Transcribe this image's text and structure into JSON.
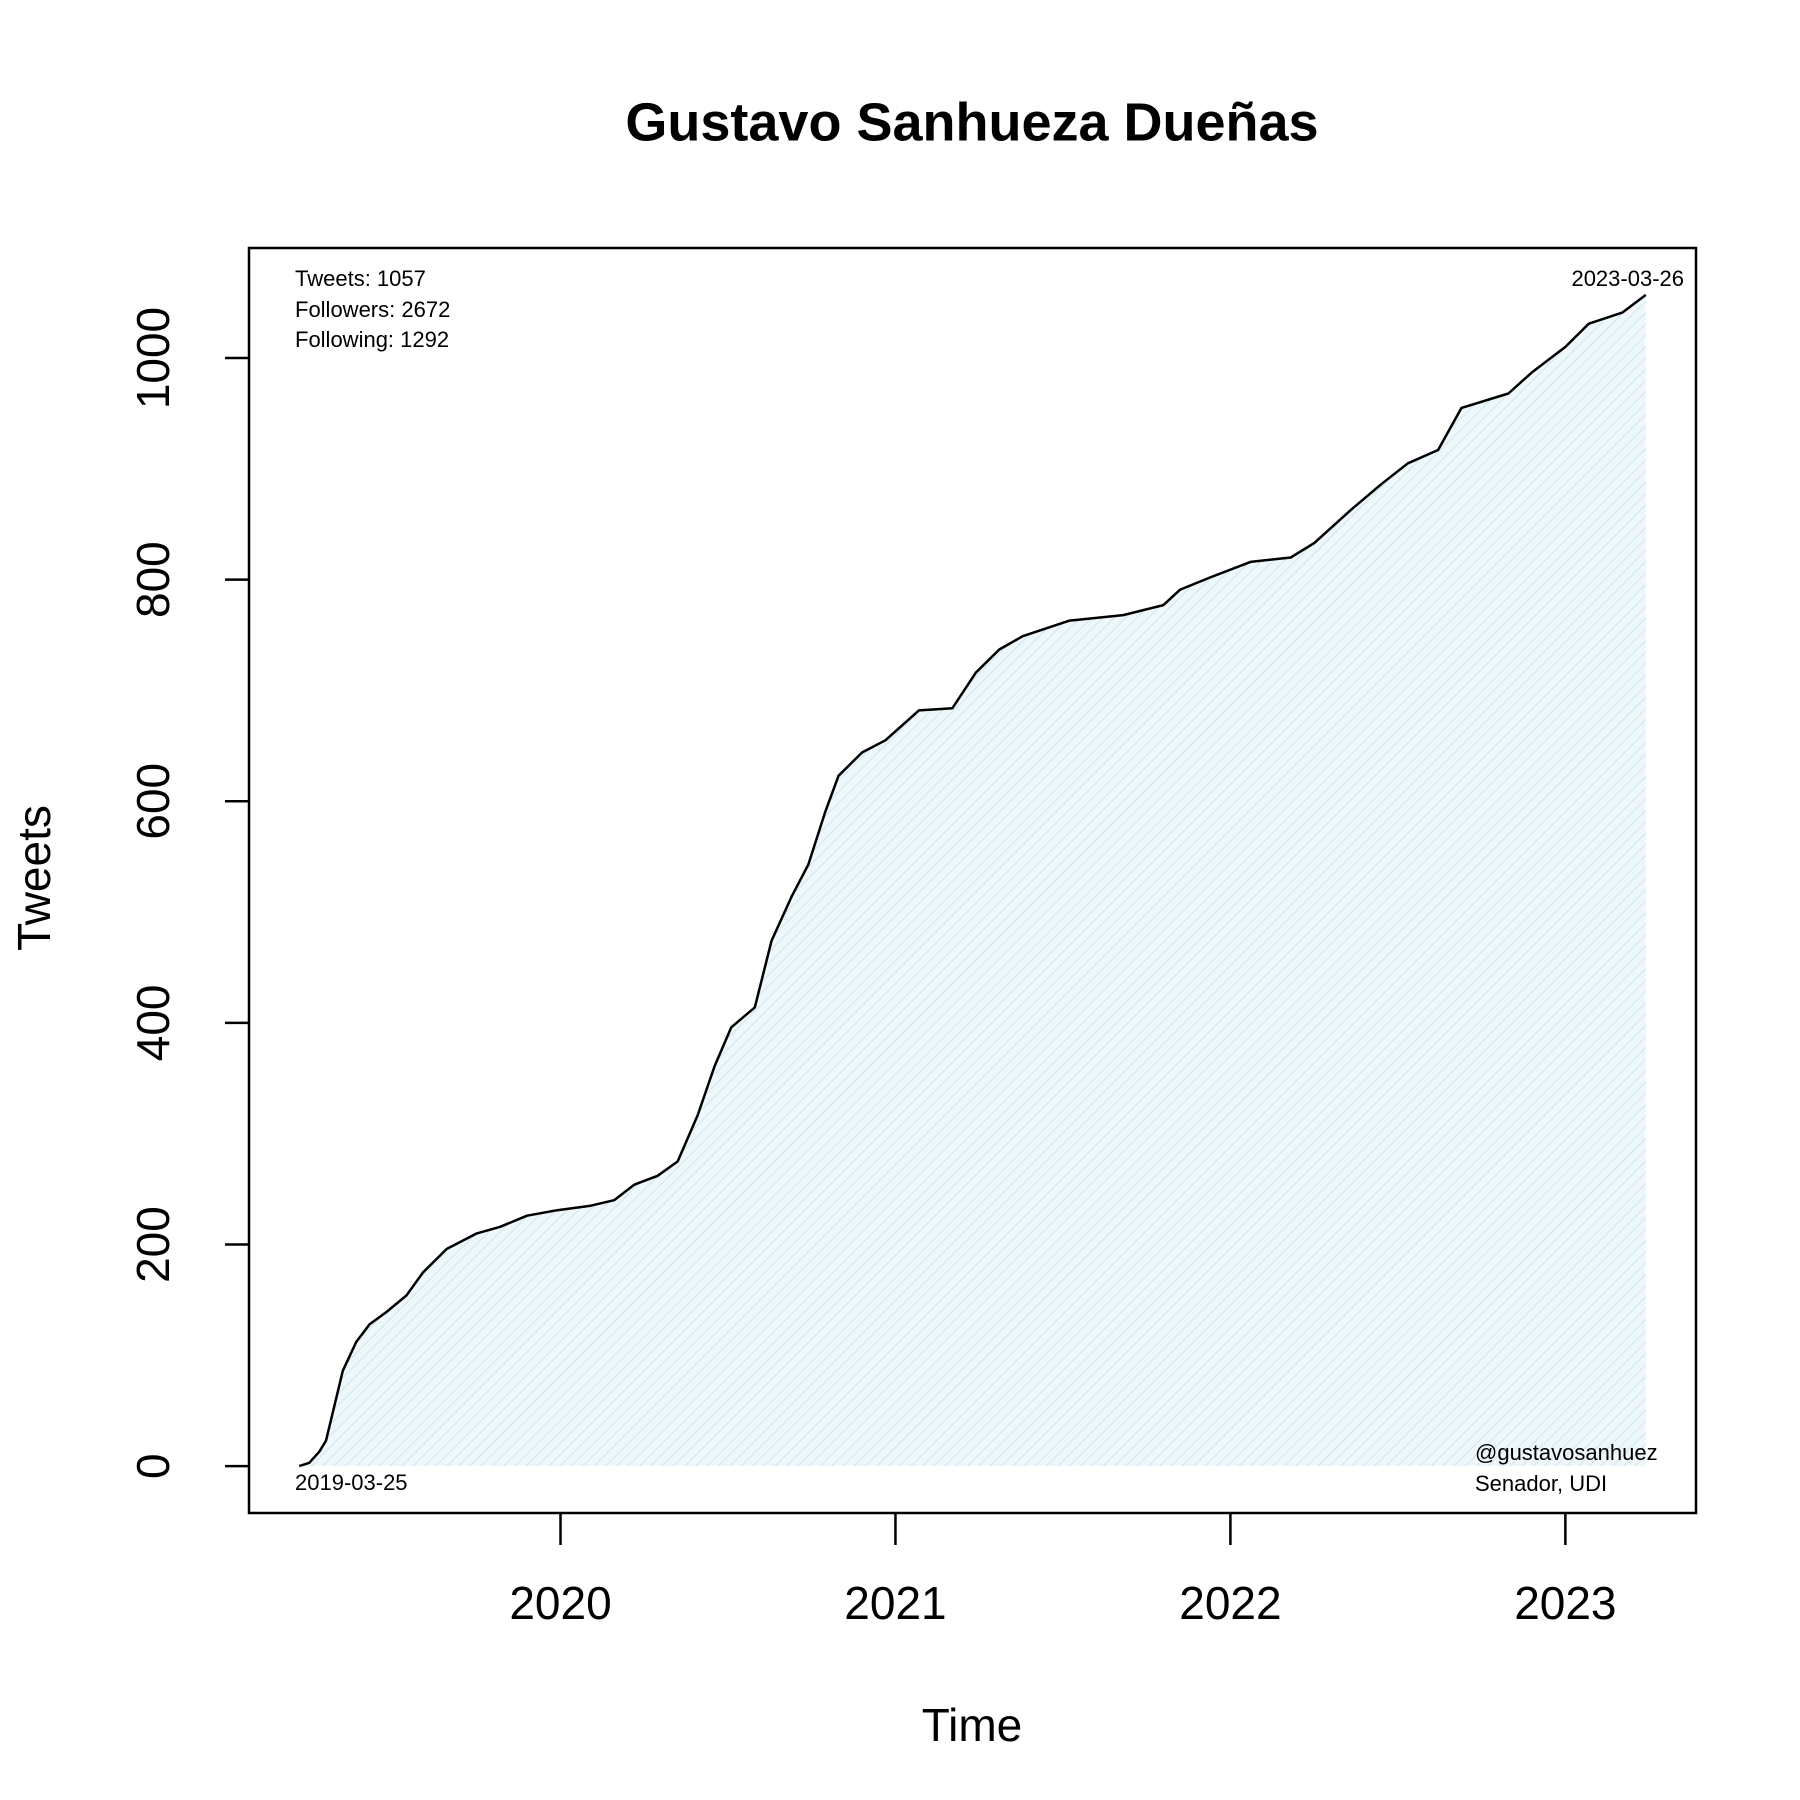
{
  "chart_data": {
    "type": "area",
    "title": "Gustavo Sanhueza Dueñas",
    "xlabel": "Time",
    "ylabel": "Tweets",
    "x": [
      2019.22,
      2019.25,
      2019.28,
      2019.3,
      2019.35,
      2019.39,
      2019.43,
      2019.48,
      2019.54,
      2019.59,
      2019.66,
      2019.75,
      2019.82,
      2019.9,
      2019.99,
      2020.09,
      2020.16,
      2020.22,
      2020.29,
      2020.35,
      2020.41,
      2020.46,
      2020.51,
      2020.58,
      2020.63,
      2020.69,
      2020.74,
      2020.79,
      2020.83,
      2020.9,
      2020.97,
      2021.07,
      2021.17,
      2021.24,
      2021.31,
      2021.38,
      2021.52,
      2021.68,
      2021.8,
      2021.85,
      2021.94,
      2022.06,
      2022.18,
      2022.25,
      2022.36,
      2022.45,
      2022.53,
      2022.62,
      2022.69,
      2022.83,
      2022.9,
      2023.0,
      2023.07,
      2023.17,
      2023.24
    ],
    "values": [
      0,
      3,
      13,
      23,
      86,
      112,
      128,
      139,
      154,
      175,
      196,
      210,
      216,
      226,
      231,
      235,
      240,
      254,
      262,
      275,
      317,
      361,
      396,
      414,
      474,
      514,
      543,
      590,
      623,
      644,
      655,
      682,
      684,
      716,
      737,
      749,
      763,
      768,
      777,
      791,
      802,
      816,
      820,
      833,
      863,
      886,
      905,
      917,
      955,
      968,
      987,
      1010,
      1031,
      1041,
      1057
    ],
    "color": "#000000",
    "fill_color": "#e3f1f5",
    "xlim": [
      2019.07,
      2023.39
    ],
    "xticks": [
      2020,
      2021,
      2022,
      2023
    ],
    "ylim": [
      -42.28,
      1099.28
    ],
    "yticks": [
      0,
      200,
      400,
      600,
      800,
      1000
    ],
    "annotations": [
      "Tweets: 1057",
      "Followers: 2672",
      "Following: 1292",
      "2023-03-26",
      "2019-03-25",
      "@gustavosanhuez",
      "Senador, UDI"
    ]
  }
}
